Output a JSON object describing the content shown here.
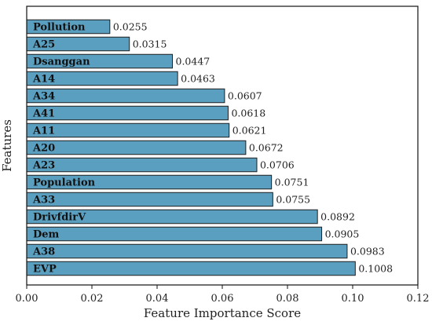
{
  "chart_data": {
    "type": "bar",
    "orientation": "horizontal",
    "categories": [
      "Pollution",
      "A25",
      "Dsanggan",
      "A14",
      "A34",
      "A41",
      "A11",
      "A20",
      "A23",
      "Population",
      "A33",
      "DrivfdirV",
      "Dem",
      "A38",
      "EVP"
    ],
    "values": [
      0.0255,
      0.0315,
      0.0447,
      0.0463,
      0.0607,
      0.0618,
      0.0621,
      0.0672,
      0.0706,
      0.0751,
      0.0755,
      0.0892,
      0.0905,
      0.0983,
      0.1008
    ],
    "value_labels": [
      "0.0255",
      "0.0315",
      "0.0447",
      "0.0463",
      "0.0607",
      "0.0618",
      "0.0621",
      "0.0672",
      "0.0706",
      "0.0751",
      "0.0755",
      "0.0892",
      "0.0905",
      "0.0983",
      "0.1008"
    ],
    "xlabel": "Feature Importance Score",
    "ylabel": "Features",
    "xlim": [
      0,
      0.12
    ],
    "xticks": [
      0.0,
      0.02,
      0.04,
      0.06,
      0.08,
      0.1,
      0.12
    ],
    "xtick_labels": [
      "0.00",
      "0.02",
      "0.04",
      "0.06",
      "0.08",
      "0.10",
      "0.12"
    ],
    "grid": false,
    "bar_color": "#5b9fc0",
    "bar_edge_color": "#1f1f1f"
  }
}
